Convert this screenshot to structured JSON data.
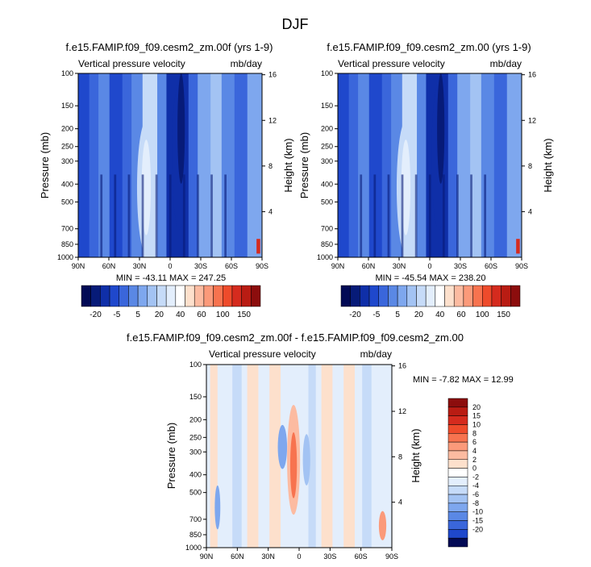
{
  "page_title": "DJF",
  "colors": {
    "pos": [
      "#ffffff",
      "#fde0cc",
      "#fcbba1",
      "#fb9a7a",
      "#f7734f",
      "#ee4b2b",
      "#d52b1e",
      "#b91c13",
      "#8c0d0d"
    ],
    "neg": [
      "#e3eefc",
      "#c6dbf8",
      "#a3c3f3",
      "#7ea7ee",
      "#5a88e5",
      "#3a66db",
      "#1f48cc",
      "#0f2fa8",
      "#071b78",
      "#020a55"
    ]
  },
  "chart_data": [
    {
      "id": "panel1",
      "type": "heatmap",
      "title": "f.e15.FAMIP.f09_f09.cesm2_zm.00f (yrs 1-9)",
      "left_label": "Vertical pressure velocity",
      "right_label": "mb/day",
      "xlabel": "",
      "ylabel": "Pressure (mb)",
      "ylabel_right": "Height (km)",
      "xticks": [
        "90N",
        "60N",
        "30N",
        "0",
        "30S",
        "60S",
        "90S"
      ],
      "yticks": [
        "100",
        "150",
        "200",
        "250",
        "300",
        "400",
        "500",
        "700",
        "850",
        "1000"
      ],
      "height_ticks": [
        "16",
        "12",
        "8",
        "4"
      ],
      "stats": "MIN = -43.11   MAX = 247.25",
      "colorbar_labels": [
        "-20",
        "-5",
        "5",
        "20",
        "40",
        "60",
        "100",
        "150"
      ],
      "colorbar_levels": [
        -30,
        -20,
        -10,
        -5,
        0,
        5,
        10,
        20,
        30,
        40,
        50,
        60,
        80,
        100,
        120,
        150,
        200
      ]
    },
    {
      "id": "panel2",
      "type": "heatmap",
      "title": "f.e15.FAMIP.f09_f09.cesm2_zm.00 (yrs 1-9)",
      "left_label": "Vertical pressure velocity",
      "right_label": "mb/day",
      "xlabel": "",
      "ylabel": "Pressure (mb)",
      "ylabel_right": "Height (km)",
      "xticks": [
        "90N",
        "60N",
        "30N",
        "0",
        "30S",
        "60S",
        "90S"
      ],
      "yticks": [
        "100",
        "150",
        "200",
        "250",
        "300",
        "400",
        "500",
        "700",
        "850",
        "1000"
      ],
      "height_ticks": [
        "16",
        "12",
        "8",
        "4"
      ],
      "stats": "MIN = -45.54   MAX = 238.20",
      "colorbar_labels": [
        "-20",
        "-5",
        "5",
        "20",
        "40",
        "60",
        "100",
        "150"
      ],
      "colorbar_levels": [
        -30,
        -20,
        -10,
        -5,
        0,
        5,
        10,
        20,
        30,
        40,
        50,
        60,
        80,
        100,
        120,
        150,
        200
      ]
    },
    {
      "id": "panel3",
      "type": "heatmap",
      "title": "f.e15.FAMIP.f09_f09.cesm2_zm.00f - f.e15.FAMIP.f09_f09.cesm2_zm.00",
      "left_label": "Vertical pressure velocity",
      "right_label": "mb/day",
      "xlabel": "",
      "ylabel": "Pressure (mb)",
      "ylabel_right": "Height (km)",
      "xticks": [
        "90N",
        "60N",
        "30N",
        "0",
        "30S",
        "60S",
        "90S"
      ],
      "yticks": [
        "100",
        "150",
        "200",
        "250",
        "300",
        "400",
        "500",
        "700",
        "850",
        "1000"
      ],
      "height_ticks": [
        "16",
        "12",
        "8",
        "4"
      ],
      "stats": "MIN = -7.82   MAX = 12.99",
      "colorbar_labels": [
        "20",
        "15",
        "10",
        "8",
        "6",
        "4",
        "2",
        "0",
        "-2",
        "-4",
        "-6",
        "-8",
        "-10",
        "-15",
        "-20"
      ]
    }
  ]
}
